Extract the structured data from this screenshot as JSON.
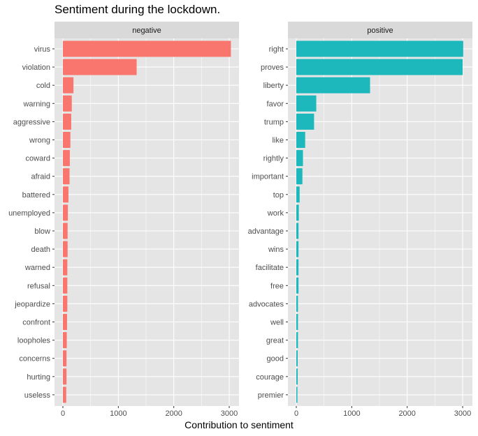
{
  "title": "Sentiment during the lockdown.",
  "colors": {
    "negative": "#F8766D",
    "positive": "#1CB8BB",
    "panel_bg": "#E5E5E5",
    "strip_bg": "#D9D9D9",
    "grid": "#FFFFFF"
  },
  "chart_data": {
    "type": "bar",
    "orientation": "horizontal",
    "title": "Sentiment during the lockdown.",
    "xlabel": "Contribution to sentiment",
    "ylabel": "",
    "xlim": [
      0,
      3150
    ],
    "xticks": [
      0,
      1000,
      2000,
      3000
    ],
    "grid": true,
    "legend": "none",
    "facets": [
      {
        "name": "negative",
        "categories": [
          "virus",
          "violation",
          "cold",
          "warning",
          "aggressive",
          "wrong",
          "coward",
          "afraid",
          "battered",
          "unemployed",
          "blow",
          "death",
          "warned",
          "refusal",
          "jeopardize",
          "confront",
          "loopholes",
          "concerns",
          "hurting",
          "useless"
        ],
        "values": [
          3030,
          1330,
          190,
          160,
          150,
          135,
          125,
          120,
          100,
          90,
          85,
          85,
          80,
          80,
          80,
          75,
          70,
          65,
          65,
          60
        ]
      },
      {
        "name": "positive",
        "categories": [
          "right",
          "proves",
          "liberty",
          "favor",
          "trump",
          "like",
          "rightly",
          "important",
          "top",
          "work",
          "advantage",
          "wins",
          "facilitate",
          "free",
          "advocates",
          "well",
          "great",
          "good",
          "courage",
          "premier"
        ],
        "values": [
          3010,
          3000,
          1330,
          360,
          320,
          160,
          120,
          110,
          60,
          45,
          40,
          40,
          40,
          40,
          30,
          30,
          30,
          25,
          25,
          20
        ]
      }
    ]
  }
}
